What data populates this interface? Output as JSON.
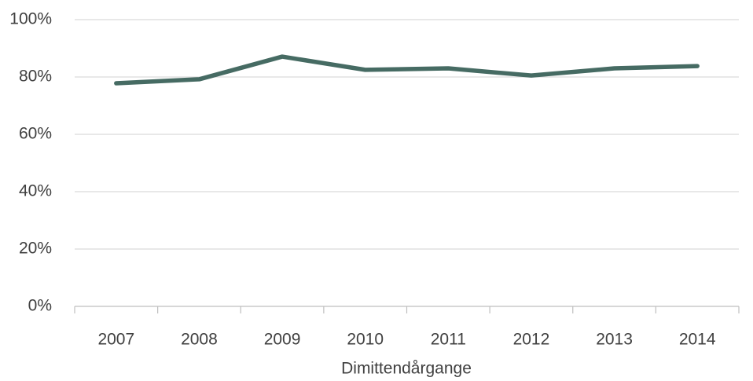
{
  "chart_data": {
    "type": "line",
    "x_label": "Dimittendårgange",
    "categories": [
      "2007",
      "2008",
      "2009",
      "2010",
      "2011",
      "2012",
      "2013",
      "2014"
    ],
    "series": [
      {
        "color": "#466b63",
        "values": [
          77.8,
          79.2,
          87.1,
          82.5,
          83.0,
          80.5,
          83.0,
          83.8
        ]
      }
    ],
    "ylim": [
      0,
      100
    ],
    "yticks": [
      {
        "value": 0,
        "label": "0%"
      },
      {
        "value": 20,
        "label": "20%"
      },
      {
        "value": 40,
        "label": "40%"
      },
      {
        "value": 60,
        "label": "60%"
      },
      {
        "value": 80,
        "label": "80%"
      },
      {
        "value": 100,
        "label": "100%"
      }
    ],
    "grid": true
  }
}
